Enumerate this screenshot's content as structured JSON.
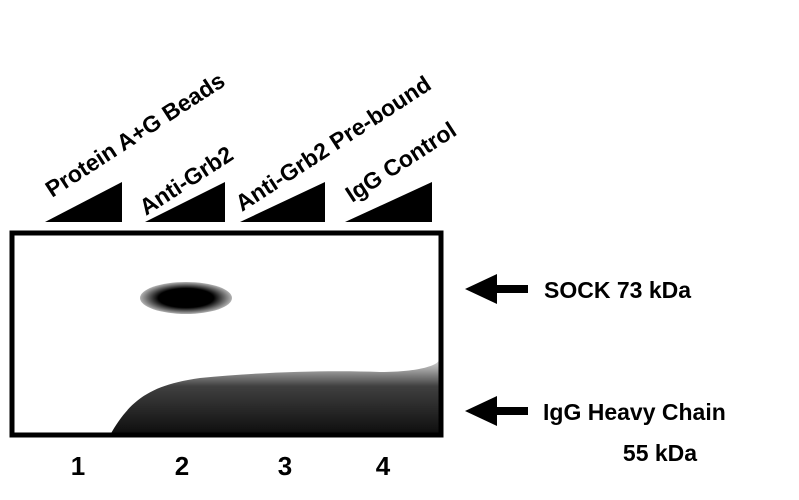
{
  "lanes": [
    {
      "label": "Protein A+G Beads",
      "number": "1"
    },
    {
      "label": "Anti-Grb2",
      "number": "2"
    },
    {
      "label": "Anti-Grb2 Pre-bound",
      "number": "3"
    },
    {
      "label": "IgG Control",
      "number": "4"
    }
  ],
  "bands": [
    {
      "label": "SOCK 73 kDa"
    },
    {
      "label": "IgG Heavy Chain",
      "sublabel": "55 kDa"
    }
  ]
}
